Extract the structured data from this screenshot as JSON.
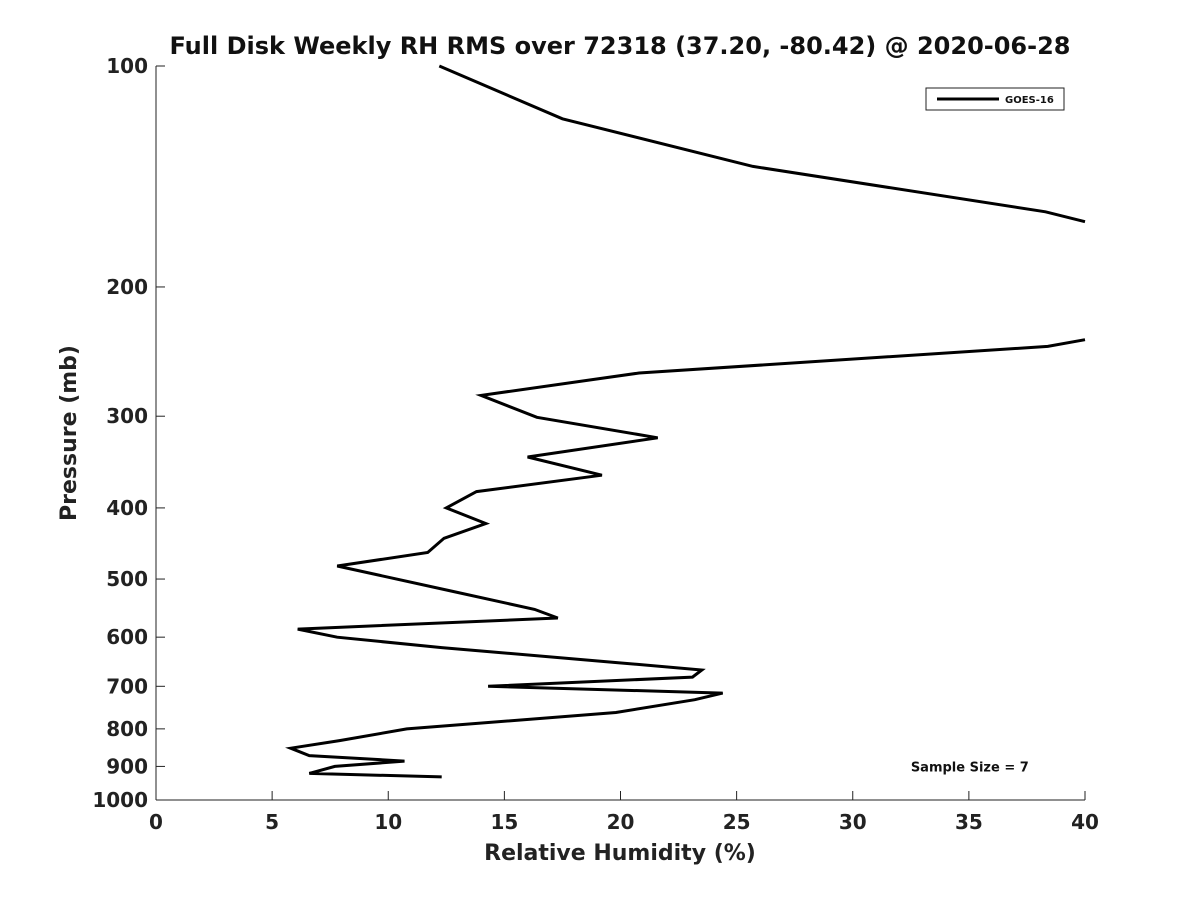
{
  "chart_data": {
    "type": "line",
    "title": "Full Disk Weekly RH RMS over 72318 (37.20, -80.42) @ 2020-06-28",
    "xlabel": "Relative Humidity (%)",
    "ylabel": "Pressure (mb)",
    "xlim": [
      0,
      40
    ],
    "ylim": [
      1000,
      100
    ],
    "yscale": "log",
    "y_reversed": true,
    "grid": false,
    "legend_position": "top-right",
    "xticks": [
      "0",
      "5",
      "10",
      "15",
      "20",
      "25",
      "30",
      "35",
      "40"
    ],
    "yticks": [
      "100",
      "200",
      "300",
      "400",
      "500",
      "600",
      "700",
      "800",
      "900",
      "1000"
    ],
    "series": [
      {
        "name": "GOES-16",
        "color": "#000000",
        "segments": [
          [
            {
              "x": 12.2,
              "y": 100
            },
            {
              "x": 17.5,
              "y": 118
            },
            {
              "x": 25.7,
              "y": 137
            },
            {
              "x": 38.3,
              "y": 158
            },
            {
              "x": 40.0,
              "y": 163
            }
          ],
          [
            {
              "x": 40.0,
              "y": 236
            },
            {
              "x": 38.4,
              "y": 241
            },
            {
              "x": 20.8,
              "y": 262
            },
            {
              "x": 14.0,
              "y": 281
            },
            {
              "x": 16.4,
              "y": 301
            },
            {
              "x": 21.6,
              "y": 321
            },
            {
              "x": 16.0,
              "y": 341
            },
            {
              "x": 19.2,
              "y": 361
            },
            {
              "x": 13.8,
              "y": 380
            },
            {
              "x": 12.5,
              "y": 400
            },
            {
              "x": 14.2,
              "y": 420
            },
            {
              "x": 12.4,
              "y": 440
            },
            {
              "x": 11.7,
              "y": 460
            },
            {
              "x": 7.8,
              "y": 480
            },
            {
              "x": 12.8,
              "y": 520
            },
            {
              "x": 16.3,
              "y": 550
            },
            {
              "x": 17.3,
              "y": 565
            },
            {
              "x": 6.1,
              "y": 585
            },
            {
              "x": 7.8,
              "y": 600
            },
            {
              "x": 12.3,
              "y": 620
            },
            {
              "x": 19.9,
              "y": 650
            },
            {
              "x": 23.5,
              "y": 665
            },
            {
              "x": 23.1,
              "y": 680
            },
            {
              "x": 14.3,
              "y": 700
            },
            {
              "x": 24.4,
              "y": 715
            },
            {
              "x": 23.2,
              "y": 730
            },
            {
              "x": 19.8,
              "y": 760
            },
            {
              "x": 10.8,
              "y": 800
            },
            {
              "x": 7.9,
              "y": 830
            },
            {
              "x": 5.8,
              "y": 850
            },
            {
              "x": 6.6,
              "y": 870
            },
            {
              "x": 10.7,
              "y": 885
            },
            {
              "x": 7.7,
              "y": 900
            },
            {
              "x": 6.6,
              "y": 920
            },
            {
              "x": 12.3,
              "y": 930
            }
          ]
        ]
      }
    ],
    "annotations": [
      {
        "text": "Sample Size = 7",
        "x": 32.5,
        "y": 900
      }
    ]
  }
}
